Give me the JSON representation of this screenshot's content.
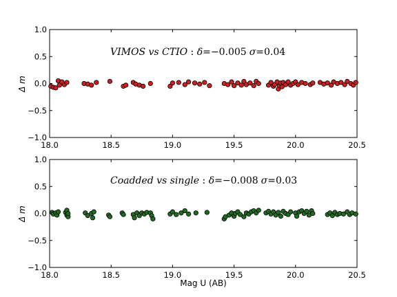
{
  "chart_data": [
    {
      "type": "scatter",
      "ylabel": "Δ m",
      "annotation": {
        "label": "VIMOS vs CTIO",
        "sep": " : ",
        "delta_sym": "δ",
        "delta_val": "=−0.005",
        "sigma_sym": "σ",
        "sigma_val": "=0.04"
      },
      "xlim": [
        18.0,
        20.5
      ],
      "ylim": [
        -1.0,
        1.0
      ],
      "x_ticks": [
        "18.0",
        "18.5",
        "19.0",
        "19.5",
        "20.0",
        "20.5"
      ],
      "y_ticks": [
        "1.0",
        "0.5",
        "0.0",
        "−0.5",
        "−1.0"
      ],
      "marker_color": "#cc1f1f",
      "points": [
        [
          18.01,
          -0.05
        ],
        [
          18.03,
          -0.07
        ],
        [
          18.05,
          -0.08
        ],
        [
          18.07,
          0.05
        ],
        [
          18.08,
          -0.03
        ],
        [
          18.1,
          0.03
        ],
        [
          18.12,
          -0.02
        ],
        [
          18.14,
          0.02
        ],
        [
          18.28,
          0.0
        ],
        [
          18.31,
          -0.01
        ],
        [
          18.34,
          -0.03
        ],
        [
          18.38,
          0.02
        ],
        [
          18.49,
          0.04
        ],
        [
          18.6,
          -0.05
        ],
        [
          18.62,
          -0.03
        ],
        [
          18.68,
          0.02
        ],
        [
          18.7,
          -0.01
        ],
        [
          18.73,
          -0.03
        ],
        [
          18.76,
          -0.05
        ],
        [
          18.82,
          0.0
        ],
        [
          18.98,
          -0.05
        ],
        [
          19.0,
          0.01
        ],
        [
          19.05,
          0.02
        ],
        [
          19.1,
          -0.02
        ],
        [
          19.13,
          0.03
        ],
        [
          19.18,
          0.01
        ],
        [
          19.22,
          -0.01
        ],
        [
          19.26,
          0.02
        ],
        [
          19.3,
          -0.04
        ],
        [
          19.42,
          0.0
        ],
        [
          19.45,
          -0.02
        ],
        [
          19.48,
          0.03
        ],
        [
          19.5,
          -0.04
        ],
        [
          19.53,
          0.01
        ],
        [
          19.56,
          -0.03
        ],
        [
          19.58,
          0.04
        ],
        [
          19.6,
          -0.02
        ],
        [
          19.63,
          0.01
        ],
        [
          19.66,
          -0.04
        ],
        [
          19.68,
          0.04
        ],
        [
          19.7,
          0.0
        ],
        [
          19.78,
          -0.03
        ],
        [
          19.8,
          0.02
        ],
        [
          19.82,
          -0.05
        ],
        [
          19.83,
          -0.02
        ],
        [
          19.85,
          0.03
        ],
        [
          19.86,
          -0.1
        ],
        [
          19.87,
          -0.04
        ],
        [
          19.88,
          0.01
        ],
        [
          19.89,
          -0.06
        ],
        [
          19.9,
          0.02
        ],
        [
          19.92,
          -0.02
        ],
        [
          19.94,
          0.03
        ],
        [
          19.96,
          -0.03
        ],
        [
          19.98,
          0.0
        ],
        [
          20.0,
          0.03
        ],
        [
          20.02,
          -0.02
        ],
        [
          20.05,
          0.02
        ],
        [
          20.08,
          0.0
        ],
        [
          20.12,
          -0.02
        ],
        [
          20.14,
          0.01
        ],
        [
          20.2,
          0.02
        ],
        [
          20.23,
          -0.01
        ],
        [
          20.26,
          0.01
        ],
        [
          20.29,
          -0.03
        ],
        [
          20.31,
          0.03
        ],
        [
          20.34,
          0.0
        ],
        [
          20.37,
          0.02
        ],
        [
          20.4,
          -0.02
        ],
        [
          20.42,
          0.04
        ],
        [
          20.45,
          0.0
        ],
        [
          20.47,
          -0.03
        ],
        [
          20.49,
          0.02
        ]
      ]
    },
    {
      "type": "scatter",
      "xlabel": "Mag U (AB)",
      "ylabel": "Δ m",
      "annotation": {
        "label": "Coadded vs single",
        "sep": " : ",
        "delta_sym": "δ",
        "delta_val": "=−0.008",
        "sigma_sym": "σ",
        "sigma_val": "=0.03"
      },
      "xlim": [
        18.0,
        20.5
      ],
      "ylim": [
        -1.0,
        1.0
      ],
      "x_ticks": [
        "18.0",
        "18.5",
        "19.0",
        "19.5",
        "20.0",
        "20.5"
      ],
      "y_ticks": [
        "1.0",
        "0.5",
        "0.0",
        "−0.5",
        "−1.0"
      ],
      "marker_color": "#1f6b1f",
      "points": [
        [
          18.02,
          0.02
        ],
        [
          18.03,
          -0.01
        ],
        [
          18.05,
          0.01
        ],
        [
          18.06,
          -0.03
        ],
        [
          18.07,
          0.03
        ],
        [
          18.13,
          0.02
        ],
        [
          18.14,
          -0.03
        ],
        [
          18.14,
          0.06
        ],
        [
          18.15,
          -0.06
        ],
        [
          18.15,
          0.0
        ],
        [
          18.29,
          0.01
        ],
        [
          18.31,
          -0.04
        ],
        [
          18.34,
          0.0
        ],
        [
          18.35,
          -0.08
        ],
        [
          18.36,
          0.03
        ],
        [
          18.48,
          -0.03
        ],
        [
          18.49,
          -0.06
        ],
        [
          18.59,
          0.01
        ],
        [
          18.6,
          -0.02
        ],
        [
          18.68,
          -0.02
        ],
        [
          18.69,
          -0.08
        ],
        [
          18.71,
          0.01
        ],
        [
          18.73,
          -0.04
        ],
        [
          18.75,
          0.01
        ],
        [
          18.77,
          -0.01
        ],
        [
          18.79,
          0.02
        ],
        [
          18.82,
          0.01
        ],
        [
          18.83,
          -0.04
        ],
        [
          18.84,
          -0.1
        ],
        [
          18.98,
          -0.01
        ],
        [
          19.0,
          0.03
        ],
        [
          19.03,
          -0.02
        ],
        [
          19.07,
          0.01
        ],
        [
          19.1,
          0.05
        ],
        [
          19.13,
          -0.01
        ],
        [
          19.19,
          0.01
        ],
        [
          19.28,
          0.02
        ],
        [
          19.42,
          -0.1
        ],
        [
          19.43,
          -0.06
        ],
        [
          19.46,
          -0.03
        ],
        [
          19.48,
          0.01
        ],
        [
          19.5,
          -0.05
        ],
        [
          19.51,
          0.0
        ],
        [
          19.53,
          0.03
        ],
        [
          19.55,
          -0.02
        ],
        [
          19.58,
          -0.06
        ],
        [
          19.6,
          0.01
        ],
        [
          19.62,
          -0.01
        ],
        [
          19.64,
          0.03
        ],
        [
          19.66,
          0.05
        ],
        [
          19.68,
          0.01
        ],
        [
          19.7,
          0.06
        ],
        [
          19.76,
          0.01
        ],
        [
          19.78,
          0.04
        ],
        [
          19.8,
          -0.01
        ],
        [
          19.82,
          0.03
        ],
        [
          19.84,
          -0.03
        ],
        [
          19.86,
          0.02
        ],
        [
          19.88,
          -0.05
        ],
        [
          19.9,
          0.04
        ],
        [
          19.92,
          0.0
        ],
        [
          19.94,
          -0.02
        ],
        [
          19.96,
          0.03
        ],
        [
          20.0,
          0.01
        ],
        [
          20.01,
          -0.05
        ],
        [
          20.03,
          0.03
        ],
        [
          20.05,
          0.05
        ],
        [
          20.07,
          0.0
        ],
        [
          20.09,
          0.04
        ],
        [
          20.11,
          -0.03
        ],
        [
          20.13,
          0.05
        ],
        [
          20.14,
          0.0
        ],
        [
          20.26,
          -0.02
        ],
        [
          20.28,
          0.01
        ],
        [
          20.3,
          -0.04
        ],
        [
          20.32,
          0.02
        ],
        [
          20.34,
          -0.02
        ],
        [
          20.36,
          0.0
        ],
        [
          20.39,
          -0.01
        ],
        [
          20.42,
          0.03
        ],
        [
          20.44,
          -0.02
        ],
        [
          20.46,
          0.01
        ],
        [
          20.49,
          -0.01
        ]
      ]
    }
  ]
}
